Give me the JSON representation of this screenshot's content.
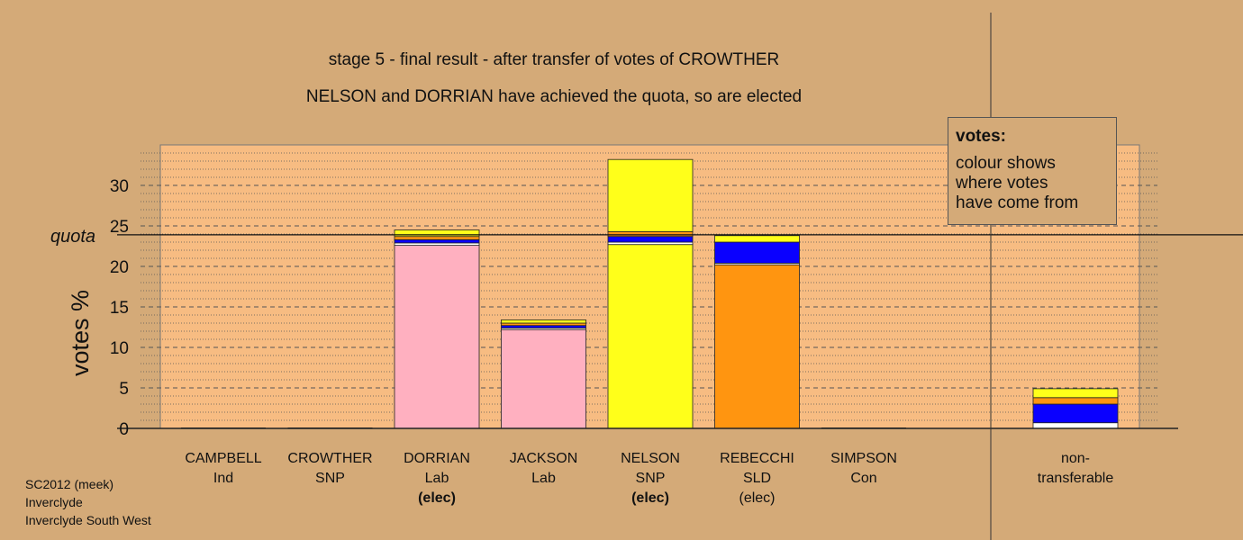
{
  "title_line1": "stage 5 - final result - after transfer of votes of CROWTHER",
  "title_line2": "NELSON and DORRIAN have achieved the quota, so are elected",
  "legend": {
    "title": "votes:",
    "lines": [
      "colour shows",
      "where votes",
      "have come from"
    ]
  },
  "footer": [
    "SC2012 (meek)",
    "Inverclyde",
    "Inverclyde South West"
  ],
  "colors": {
    "background": "#D4AA78",
    "plot_area": "#F7BC82",
    "Lab": "#FFB0C0",
    "SNP": "#FFFF1A",
    "SLD": "#FF9510",
    "Con": "#0A00FF",
    "Ind": "#FFFFFF",
    "grid": "#555555",
    "axis": "#222222"
  },
  "chart_data": {
    "type": "bar",
    "stacked": true,
    "ylabel": "votes %",
    "ylim": [
      0,
      35
    ],
    "yticks": [
      0,
      5,
      10,
      15,
      20,
      25,
      30
    ],
    "quota": {
      "label": "quota",
      "value": 23.9
    },
    "grid": true,
    "legend_position": "top-right",
    "categories": [
      {
        "name": "CAMPBELL",
        "party": "Ind",
        "status": ""
      },
      {
        "name": "CROWTHER",
        "party": "SNP",
        "status": ""
      },
      {
        "name": "DORRIAN",
        "party": "Lab",
        "status": "(elec)",
        "status_bold": true
      },
      {
        "name": "JACKSON",
        "party": "Lab",
        "status": ""
      },
      {
        "name": "NELSON",
        "party": "SNP",
        "status": "(elec)",
        "status_bold": true
      },
      {
        "name": "REBECCHI",
        "party": "SLD",
        "status": "(elec)",
        "status_bold": false
      },
      {
        "name": "SIMPSON",
        "party": "Con",
        "status": ""
      },
      {
        "name": "non-",
        "party": "transferable",
        "status": ""
      }
    ],
    "stacks": [
      [],
      [],
      [
        {
          "source": "Lab",
          "value": 22.6
        },
        {
          "source": "Ind",
          "value": 0.3
        },
        {
          "source": "Con",
          "value": 0.4
        },
        {
          "source": "SLD",
          "value": 0.4
        },
        {
          "source": "SNP",
          "value": 0.8
        }
      ],
      [
        {
          "source": "Lab",
          "value": 12.2
        },
        {
          "source": "Ind",
          "value": 0.2
        },
        {
          "source": "Con",
          "value": 0.3
        },
        {
          "source": "SLD",
          "value": 0.3
        },
        {
          "source": "SNP",
          "value": 0.4
        }
      ],
      [
        {
          "source": "SNP",
          "value": 22.7
        },
        {
          "source": "Ind",
          "value": 0.3
        },
        {
          "source": "Con",
          "value": 0.7
        },
        {
          "source": "SLD",
          "value": 0.6
        },
        {
          "source": "SNP",
          "value": 8.9
        }
      ],
      [
        {
          "source": "SLD",
          "value": 20.2
        },
        {
          "source": "Ind",
          "value": 0.2
        },
        {
          "source": "Con",
          "value": 2.6
        },
        {
          "source": "SNP",
          "value": 0.8
        }
      ],
      [],
      [
        {
          "source": "Ind",
          "value": 0.7
        },
        {
          "source": "Con",
          "value": 2.3
        },
        {
          "source": "SLD",
          "value": 0.8
        },
        {
          "source": "SNP",
          "value": 1.1
        }
      ]
    ]
  }
}
